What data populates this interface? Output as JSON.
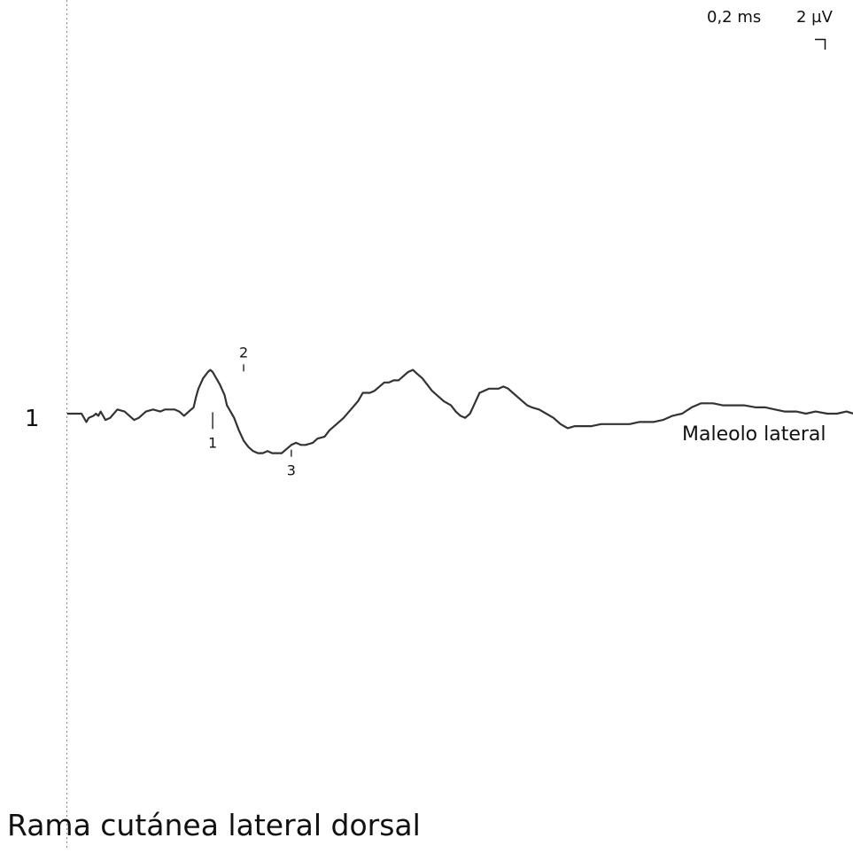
{
  "chart_data": {
    "type": "line",
    "title": "Rama cutánea lateral dorsal",
    "scale": {
      "time_label": "0,2 ms",
      "amplitude_label": "2 µV"
    },
    "traces": [
      {
        "number": "1",
        "name": "Maleolo lateral",
        "markers": [
          {
            "label": "1",
            "x_ms": 0.61,
            "y_uv": -0.1
          },
          {
            "label": "2",
            "x_ms": 0.74,
            "y_uv": 2.2
          },
          {
            "label": "3",
            "x_ms": 0.94,
            "y_uv": -1.9
          }
        ],
        "x_ms": [
          0,
          0.03,
          0.05,
          0.06,
          0.08,
          0.09,
          0.11,
          0.12,
          0.13,
          0.14,
          0.16,
          0.18,
          0.21,
          0.24,
          0.28,
          0.3,
          0.33,
          0.36,
          0.39,
          0.41,
          0.43,
          0.45,
          0.47,
          0.49,
          0.51,
          0.53,
          0.54,
          0.55,
          0.57,
          0.59,
          0.6,
          0.61,
          0.62,
          0.64,
          0.66,
          0.67,
          0.7,
          0.72,
          0.74,
          0.76,
          0.78,
          0.8,
          0.82,
          0.84,
          0.86,
          0.88,
          0.9,
          0.92,
          0.94,
          0.96,
          0.98,
          1.0,
          1.03,
          1.05,
          1.08,
          1.1,
          1.13,
          1.16,
          1.19,
          1.22,
          1.24,
          1.27,
          1.29,
          1.31,
          1.33,
          1.35,
          1.37,
          1.39,
          1.41,
          1.43,
          1.45,
          1.47,
          1.49,
          1.51,
          1.53,
          1.56,
          1.58,
          1.61,
          1.63,
          1.65,
          1.67,
          1.69,
          1.71,
          1.73,
          1.75,
          1.77,
          1.79,
          1.81,
          1.83,
          1.85,
          1.87,
          1.9,
          1.93,
          1.95,
          1.98,
          2.01,
          2.04,
          2.07,
          2.1,
          2.13,
          2.16,
          2.2,
          2.24,
          2.28,
          2.32,
          2.36,
          2.4,
          2.43,
          2.46,
          2.5,
          2.54,
          2.58,
          2.62,
          2.66,
          2.71,
          2.75,
          2.8,
          2.84,
          2.89,
          2.93,
          2.97,
          3.01,
          3.06,
          3.1,
          3.14,
          3.19,
          3.23,
          3.27,
          3.3
        ],
        "y_uv": [
          0,
          0,
          0,
          0,
          -0.4,
          -0.2,
          -0.1,
          0.0,
          -0.1,
          0.1,
          -0.3,
          -0.2,
          0.2,
          0.1,
          -0.3,
          -0.2,
          0.1,
          0.2,
          0.1,
          0.2,
          0.2,
          0.2,
          0.1,
          -0.1,
          0.1,
          0.3,
          0.8,
          1.2,
          1.7,
          2.0,
          2.1,
          2.0,
          1.8,
          1.4,
          0.9,
          0.4,
          -0.2,
          -0.8,
          -1.3,
          -1.6,
          -1.8,
          -1.9,
          -1.9,
          -1.8,
          -1.9,
          -1.9,
          -1.9,
          -1.7,
          -1.5,
          -1.4,
          -1.5,
          -1.5,
          -1.4,
          -1.2,
          -1.1,
          -0.8,
          -0.5,
          -0.2,
          0.2,
          0.6,
          1.0,
          1.0,
          1.1,
          1.3,
          1.5,
          1.5,
          1.6,
          1.6,
          1.8,
          2.0,
          2.1,
          1.9,
          1.7,
          1.4,
          1.1,
          0.8,
          0.6,
          0.4,
          0.1,
          -0.1,
          -0.2,
          0.0,
          0.5,
          1.0,
          1.1,
          1.2,
          1.2,
          1.2,
          1.3,
          1.2,
          1.0,
          0.7,
          0.4,
          0.3,
          0.2,
          0.0,
          -0.2,
          -0.5,
          -0.7,
          -0.6,
          -0.6,
          -0.6,
          -0.5,
          -0.5,
          -0.5,
          -0.5,
          -0.4,
          -0.4,
          -0.4,
          -0.3,
          -0.1,
          0.0,
          0.3,
          0.5,
          0.5,
          0.4,
          0.4,
          0.4,
          0.3,
          0.3,
          0.2,
          0.1,
          0.1,
          0.0,
          0.1,
          0.0,
          0.0,
          0.1,
          0.0
        ]
      }
    ],
    "grid": false
  }
}
